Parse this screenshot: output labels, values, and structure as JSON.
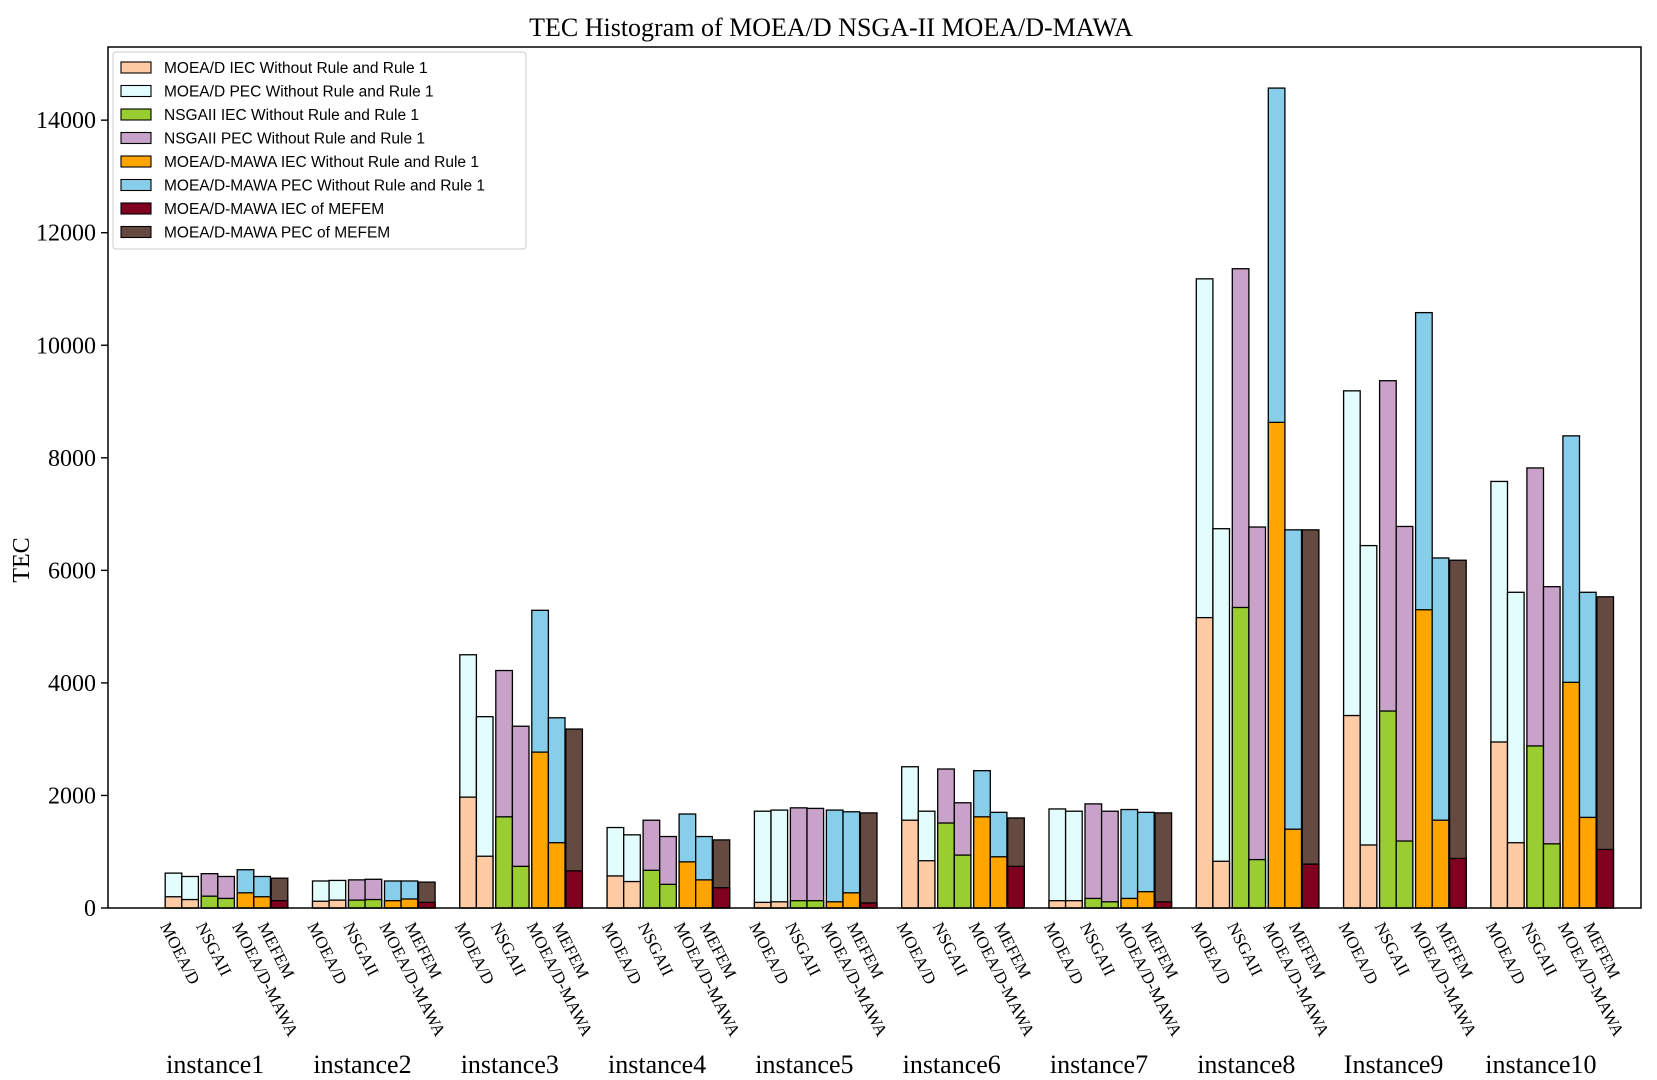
{
  "chart_data": {
    "type": "bar",
    "stacked": true,
    "title": "TEC Histogram of MOEA/D NSGA-II MOEA/D-MAWA",
    "ylabel": "TEC",
    "xlabel": "",
    "ylim": [
      0,
      15300
    ],
    "yticks": [
      0,
      2000,
      4000,
      6000,
      8000,
      10000,
      12000,
      14000
    ],
    "legend_position": "top-left",
    "bar_labels": [
      "MOEA/D",
      "NSGAII",
      "MOEA/D-MAWA",
      "MEFEM"
    ],
    "groups": [
      "instance1",
      "instance2",
      "instance3",
      "instance4",
      "instance5",
      "instance6",
      "instance7",
      "instance8",
      "Instance9",
      "instance10"
    ],
    "series": [
      {
        "name": "MOEA/D IEC Without Rule and Rule 1",
        "color": "#FFCBA4"
      },
      {
        "name": "MOEA/D PEC Without Rule and Rule 1",
        "color": "#E3FCFC"
      },
      {
        "name": "NSGAII IEC Without Rule and Rule 1",
        "color": "#9ACD32"
      },
      {
        "name": "NSGAII PEC Without Rule and Rule 1",
        "color": "#C8A2C8"
      },
      {
        "name": "MOEA/D-MAWA IEC Without Rule and Rule 1",
        "color": "#FFA500"
      },
      {
        "name": "MOEA/D-MAWA PEC Without Rule and Rule 1",
        "color": "#87CEEB"
      },
      {
        "name": "MOEA/D-MAWA IEC of MEFEM",
        "color": "#800020"
      },
      {
        "name": "MOEA/D-MAWA PEC of MEFEM",
        "color": "#654A42"
      }
    ],
    "data": [
      {
        "group": "instance1",
        "MOEA/D": {
          "wo": [
            200,
            620
          ],
          "r1": [
            150,
            560
          ]
        },
        "NSGAII": {
          "wo": [
            210,
            610
          ],
          "r1": [
            170,
            560
          ]
        },
        "MOEA/D-MAWA": {
          "wo": [
            270,
            680
          ],
          "r1": [
            200,
            560
          ]
        },
        "MEFEM": [
          130,
          530
        ]
      },
      {
        "group": "instance2",
        "MOEA/D": {
          "wo": [
            120,
            480
          ],
          "r1": [
            140,
            490
          ]
        },
        "NSGAII": {
          "wo": [
            140,
            500
          ],
          "r1": [
            150,
            510
          ]
        },
        "MOEA/D-MAWA": {
          "wo": [
            130,
            480
          ],
          "r1": [
            160,
            480
          ]
        },
        "MEFEM": [
          100,
          460
        ]
      },
      {
        "group": "instance3",
        "MOEA/D": {
          "wo": [
            1970,
            4500
          ],
          "r1": [
            920,
            3400
          ]
        },
        "NSGAII": {
          "wo": [
            1620,
            4220
          ],
          "r1": [
            740,
            3230
          ]
        },
        "MOEA/D-MAWA": {
          "wo": [
            2770,
            5290
          ],
          "r1": [
            1160,
            3380
          ]
        },
        "MEFEM": [
          660,
          3180
        ]
      },
      {
        "group": "instance4",
        "MOEA/D": {
          "wo": [
            570,
            1430
          ],
          "r1": [
            470,
            1300
          ]
        },
        "NSGAII": {
          "wo": [
            670,
            1560
          ],
          "r1": [
            420,
            1270
          ]
        },
        "MOEA/D-MAWA": {
          "wo": [
            820,
            1670
          ],
          "r1": [
            500,
            1270
          ]
        },
        "MEFEM": [
          360,
          1210
        ]
      },
      {
        "group": "instance5",
        "MOEA/D": {
          "wo": [
            100,
            1720
          ],
          "r1": [
            110,
            1740
          ]
        },
        "NSGAII": {
          "wo": [
            130,
            1780
          ],
          "r1": [
            130,
            1770
          ]
        },
        "MOEA/D-MAWA": {
          "wo": [
            110,
            1740
          ],
          "r1": [
            270,
            1710
          ]
        },
        "MEFEM": [
          90,
          1690
        ]
      },
      {
        "group": "instance6",
        "MOEA/D": {
          "wo": [
            1560,
            2510
          ],
          "r1": [
            840,
            1720
          ]
        },
        "NSGAII": {
          "wo": [
            1510,
            2470
          ],
          "r1": [
            940,
            1870
          ]
        },
        "MOEA/D-MAWA": {
          "wo": [
            1620,
            2440
          ],
          "r1": [
            910,
            1700
          ]
        },
        "MEFEM": [
          740,
          1600
        ]
      },
      {
        "group": "instance7",
        "MOEA/D": {
          "wo": [
            130,
            1760
          ],
          "r1": [
            130,
            1720
          ]
        },
        "NSGAII": {
          "wo": [
            170,
            1850
          ],
          "r1": [
            110,
            1720
          ]
        },
        "MOEA/D-MAWA": {
          "wo": [
            170,
            1750
          ],
          "r1": [
            290,
            1700
          ]
        },
        "MEFEM": [
          110,
          1690
        ]
      },
      {
        "group": "instance8",
        "MOEA/D": {
          "wo": [
            5160,
            11180
          ],
          "r1": [
            830,
            6740
          ]
        },
        "NSGAII": {
          "wo": [
            5340,
            11360
          ],
          "r1": [
            860,
            6770
          ]
        },
        "MOEA/D-MAWA": {
          "wo": [
            8630,
            14570
          ],
          "r1": [
            1400,
            6720
          ]
        },
        "MEFEM": [
          780,
          6720
        ]
      },
      {
        "group": "Instance9",
        "MOEA/D": {
          "wo": [
            3420,
            9190
          ],
          "r1": [
            1120,
            6440
          ]
        },
        "NSGAII": {
          "wo": [
            3500,
            9370
          ],
          "r1": [
            1190,
            6780
          ]
        },
        "MOEA/D-MAWA": {
          "wo": [
            5300,
            10580
          ],
          "r1": [
            1560,
            6220
          ]
        },
        "MEFEM": [
          880,
          6180
        ]
      },
      {
        "group": "instance10",
        "MOEA/D": {
          "wo": [
            2950,
            7580
          ],
          "r1": [
            1160,
            5610
          ]
        },
        "NSGAII": {
          "wo": [
            2880,
            7820
          ],
          "r1": [
            1140,
            5710
          ]
        },
        "MOEA/D-MAWA": {
          "wo": [
            4010,
            8390
          ],
          "r1": [
            1610,
            5610
          ]
        },
        "MEFEM": [
          1040,
          5530
        ]
      }
    ]
  }
}
